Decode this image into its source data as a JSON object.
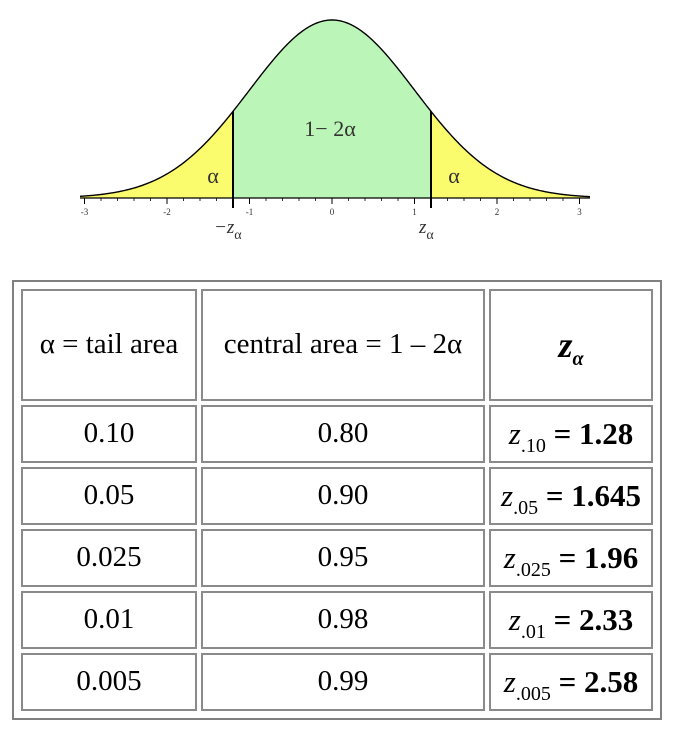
{
  "figure": {
    "center_label": "1− 2α",
    "left_tail_label": "α",
    "right_tail_label": "α",
    "left_critical_label": "−z",
    "left_critical_sub": "α",
    "right_critical_label": "z",
    "right_critical_sub": "α",
    "tick_labels": [
      "-3",
      "-2",
      "-1",
      "0",
      "1",
      "2",
      "3"
    ],
    "colors": {
      "central": "#bbf5b8",
      "tail": "#fbfb6e",
      "outline": "#000000"
    }
  },
  "chart_data": {
    "type": "area",
    "curve": "standard normal density",
    "xlim": [
      -3,
      3
    ],
    "critical_value": 1.2,
    "regions": [
      {
        "label": "α",
        "x_range": [
          -3,
          -1.2
        ],
        "color": "#fbfb6e"
      },
      {
        "label": "1− 2α",
        "x_range": [
          -1.2,
          1.2
        ],
        "color": "#bbf5b8"
      },
      {
        "label": "α",
        "x_range": [
          1.2,
          3
        ],
        "color": "#fbfb6e"
      }
    ],
    "tick_labels": [
      "-3",
      "-2",
      "-1",
      "0",
      "1",
      "2",
      "3"
    ]
  },
  "table": {
    "headers": [
      "α = tail area",
      "central area = 1 – 2α"
    ],
    "z_header": {
      "symbol": "z",
      "sub": "α"
    },
    "rows": [
      {
        "alpha": "0.10",
        "central": "0.80",
        "z_sub": ".10",
        "z_value": "1.28"
      },
      {
        "alpha": "0.05",
        "central": "0.90",
        "z_sub": ".05",
        "z_value": "1.645"
      },
      {
        "alpha": "0.025",
        "central": "0.95",
        "z_sub": ".025",
        "z_value": "1.96"
      },
      {
        "alpha": "0.01",
        "central": "0.98",
        "z_sub": ".01",
        "z_value": "2.33"
      },
      {
        "alpha": "0.005",
        "central": "0.99",
        "z_sub": ".005",
        "z_value": "2.58"
      }
    ]
  }
}
